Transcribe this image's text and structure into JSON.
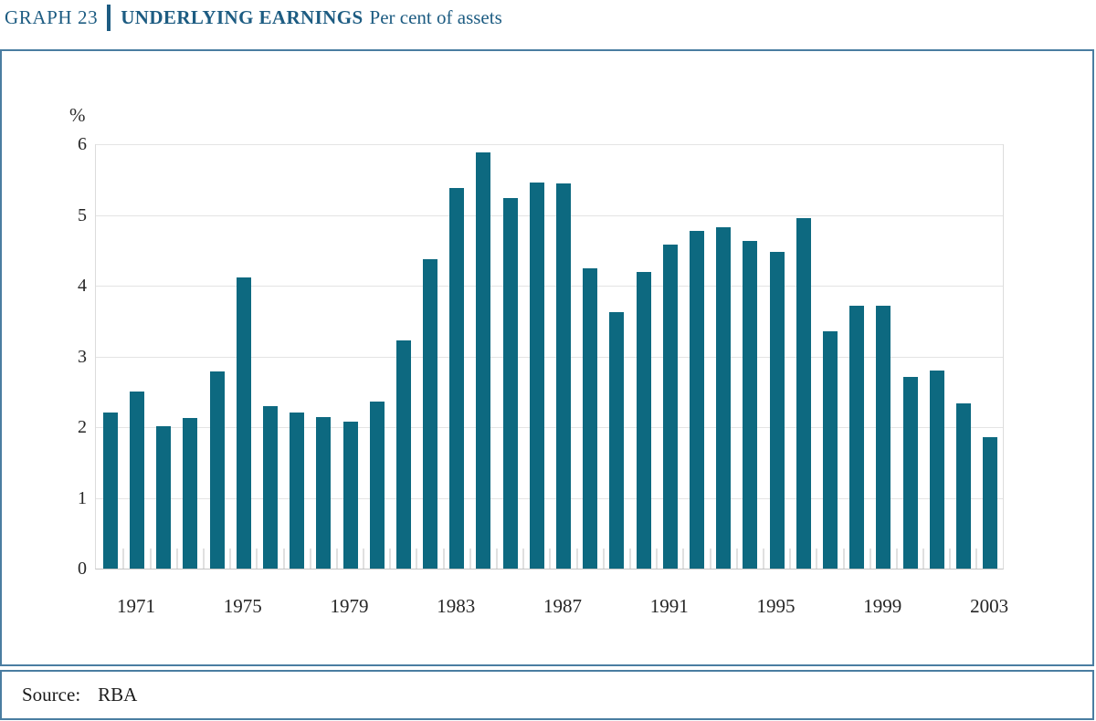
{
  "header": {
    "graph_label": "GRAPH 23",
    "title": "UNDERLYING EARNINGS",
    "subtitle": "Per cent of assets"
  },
  "source": {
    "label": "Source:",
    "value": "RBA"
  },
  "colors": {
    "bar": "#0d6980",
    "header_text": "#1d5c82",
    "panel_border": "#4a7da1"
  },
  "chart_data": {
    "type": "bar",
    "title": "UNDERLYING EARNINGS",
    "subtitle": "Per cent of assets",
    "unit_label": "%",
    "ylabel": "%",
    "xlabel": "",
    "ylim": [
      0,
      6
    ],
    "y_ticks": [
      0,
      1,
      2,
      3,
      4,
      5,
      6
    ],
    "x_tick_labels": [
      "1971",
      "1975",
      "1979",
      "1983",
      "1987",
      "1991",
      "1995",
      "1999",
      "2003"
    ],
    "grid": "horizontal",
    "legend": "none",
    "categories": [
      1970,
      1971,
      1972,
      1973,
      1974,
      1975,
      1976,
      1977,
      1978,
      1979,
      1980,
      1981,
      1982,
      1983,
      1984,
      1985,
      1986,
      1987,
      1988,
      1989,
      1990,
      1991,
      1992,
      1993,
      1994,
      1995,
      1996,
      1997,
      1998,
      1999,
      2000,
      2001,
      2002,
      2003
    ],
    "values": [
      2.21,
      2.5,
      2.01,
      2.13,
      2.79,
      4.12,
      2.3,
      2.21,
      2.14,
      2.08,
      2.36,
      3.23,
      4.38,
      5.38,
      5.88,
      5.24,
      5.46,
      5.45,
      4.24,
      3.62,
      4.2,
      4.58,
      4.78,
      4.82,
      4.63,
      4.48,
      4.96,
      3.36,
      3.71,
      3.71,
      2.71,
      2.8,
      2.33,
      1.86
    ]
  }
}
